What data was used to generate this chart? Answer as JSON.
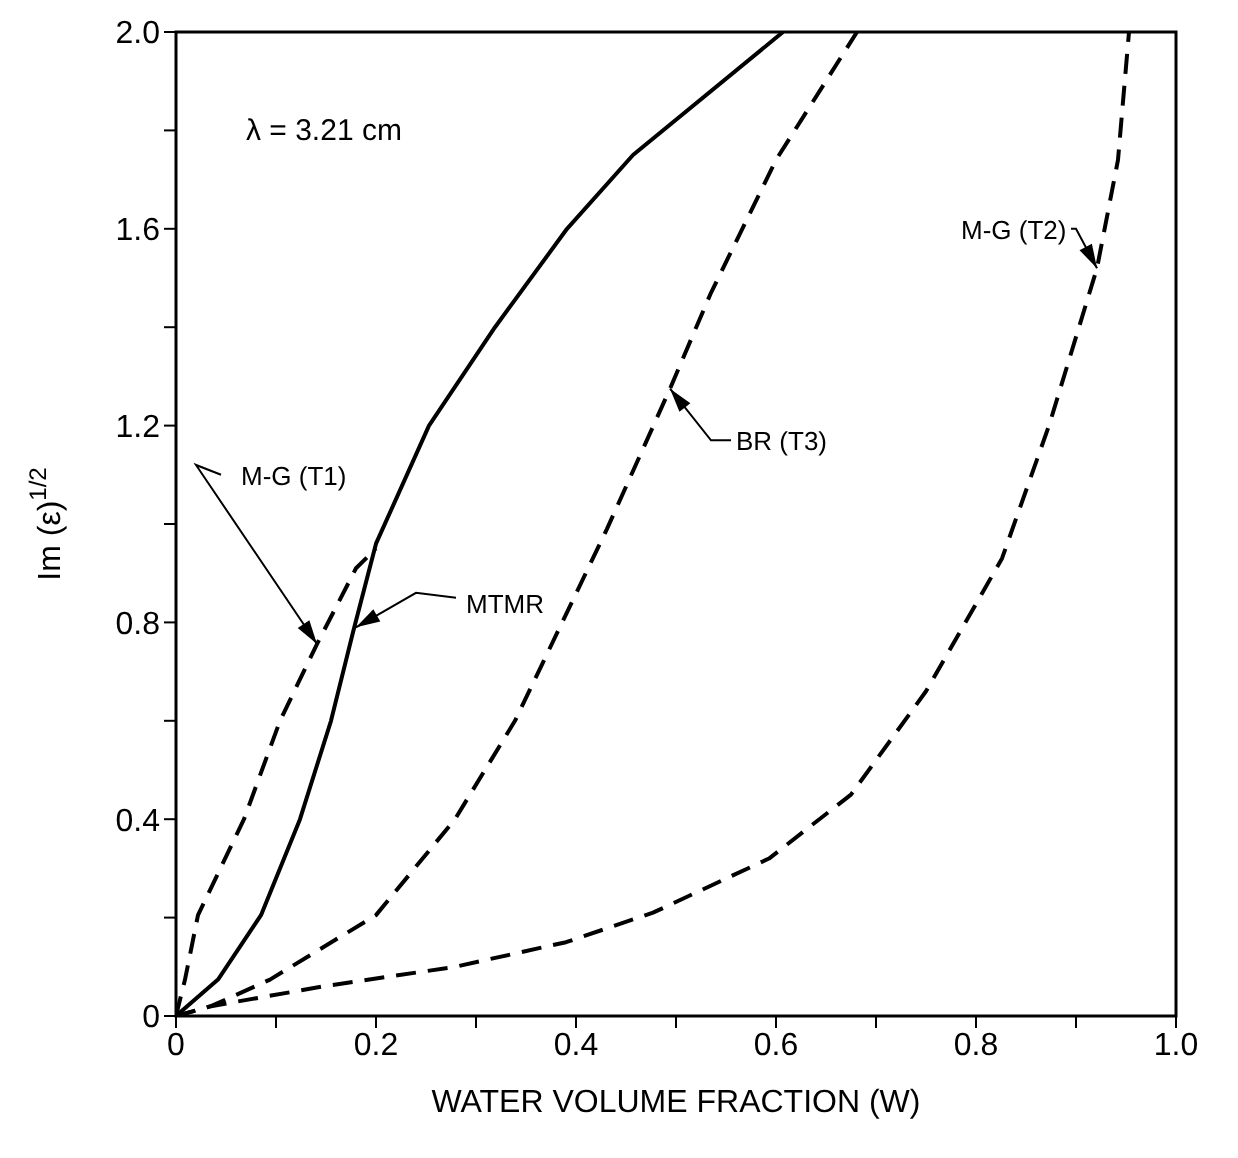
{
  "chart_data": {
    "type": "line",
    "xlabel": "WATER VOLUME FRACTION (W)",
    "ylabel": "Im (ε)$^{1/2}$",
    "annotations": [
      "λ = 3.21 cm"
    ],
    "xlim": [
      0,
      1
    ],
    "xticks": [
      0,
      {
        "value": 0.1,
        "label": null
      },
      0.2,
      {
        "value": 0.3,
        "label": null
      },
      0.4,
      {
        "value": 0.5,
        "label": null
      },
      0.6,
      {
        "value": 0.7,
        "label": null
      },
      0.8,
      {
        "value": 0.9,
        "label": null
      },
      {
        "value": 1,
        "label": "1.0"
      }
    ],
    "ylim": [
      0,
      2
    ],
    "yticks": [
      0,
      {
        "value": 0.2,
        "label": null
      },
      0.4,
      {
        "value": 0.6,
        "label": null
      },
      0.8,
      {
        "value": 1,
        "label": null
      },
      1.2,
      {
        "value": 1.4,
        "label": null
      },
      1.6,
      {
        "value": 1.8,
        "label": null
      },
      {
        "value": 2,
        "label": "2.0"
      }
    ],
    "series": [
      {
        "name": "M-G (T1)",
        "color": "#000000",
        "line_style": "dashed",
        "x": [
          0,
          0.009,
          0.022,
          0.068,
          0.104,
          0.141,
          0.18,
          0.2
        ],
        "values": [
          0,
          0.074,
          0.205,
          0.4,
          0.6,
          0.756,
          0.91,
          0.95
        ]
      },
      {
        "name": "MTMR",
        "color": "#000000",
        "line_style": "solid",
        "x": [
          0,
          0.042,
          0.085,
          0.124,
          0.155,
          0.177,
          0.2,
          0.253,
          0.319,
          0.391,
          0.457,
          0.607
        ],
        "values": [
          0,
          0.074,
          0.205,
          0.4,
          0.6,
          0.78,
          0.96,
          1.2,
          1.4,
          1.6,
          1.75,
          2.0
        ]
      },
      {
        "name": "BR (T3)",
        "color": "#000000",
        "line_style": "dashed",
        "x": [
          0,
          0.035,
          0.094,
          0.2,
          0.279,
          0.339,
          0.385,
          0.431,
          0.494,
          0.535,
          0.6,
          0.681
        ],
        "values": [
          0,
          0.02,
          0.074,
          0.205,
          0.4,
          0.6,
          0.795,
          0.99,
          1.275,
          1.47,
          1.74,
          2.0
        ]
      },
      {
        "name": "M-G (T2)",
        "color": "#000000",
        "line_style": "dashed",
        "x": [
          0,
          0.035,
          0.147,
          0.279,
          0.39,
          0.477,
          0.593,
          0.675,
          0.75,
          0.826,
          0.873,
          0.921,
          0.942,
          0.953
        ],
        "values": [
          0,
          0.02,
          0.06,
          0.1,
          0.15,
          0.21,
          0.32,
          0.45,
          0.66,
          0.93,
          1.2,
          1.52,
          1.74,
          2.0
        ]
      }
    ]
  }
}
